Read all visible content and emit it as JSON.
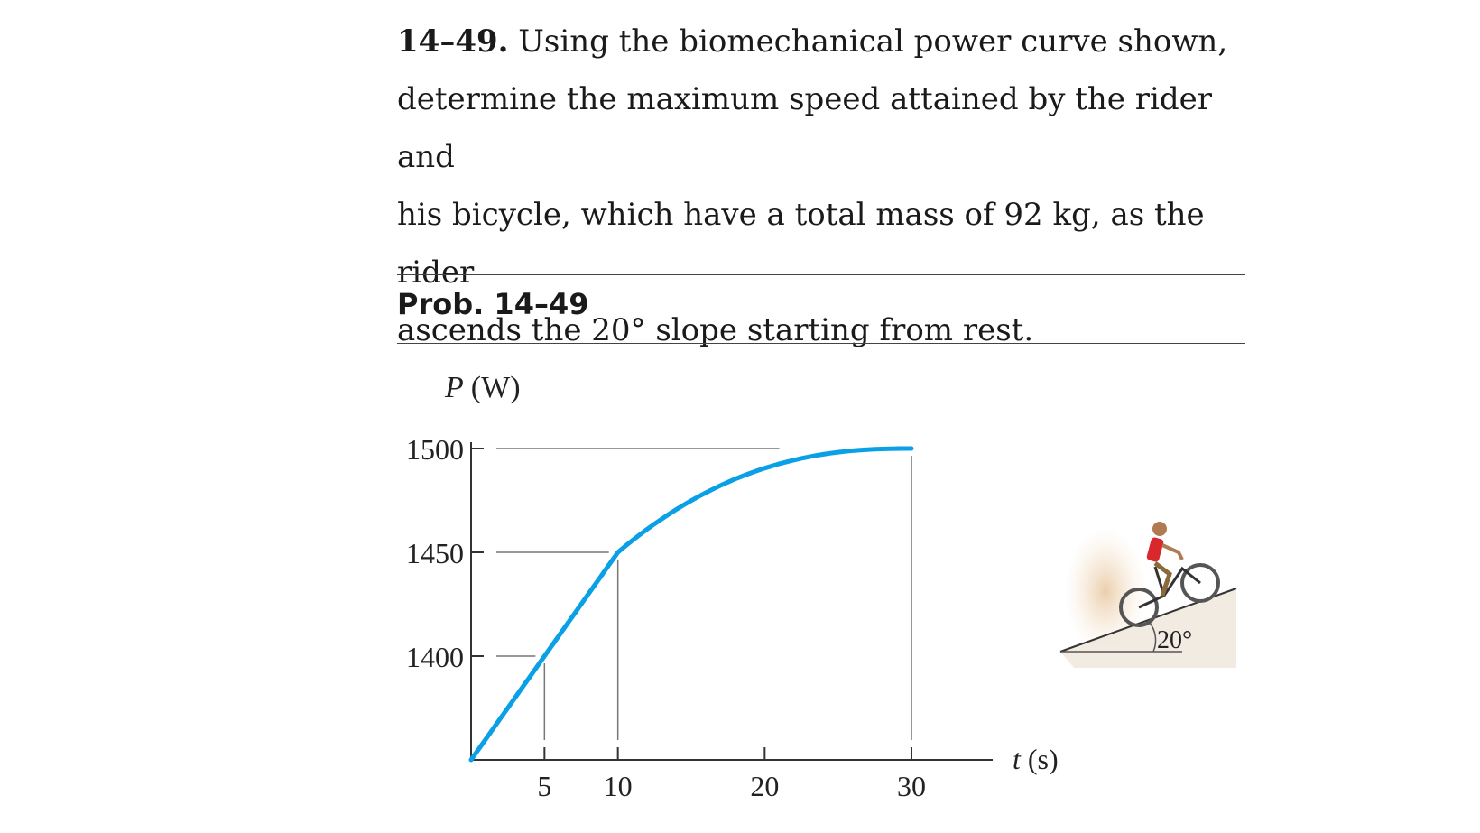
{
  "problem": {
    "number": "14–49.",
    "text_lines": [
      "Using the biomechanical power curve shown,",
      "determine the maximum speed attained by the rider and",
      "his bicycle, which have a total mass of 92 kg, as the rider",
      "ascends the 20° slope starting from rest."
    ]
  },
  "caption": "Prob. 14–49",
  "chart_data": {
    "type": "line",
    "ylabel_var": "P",
    "ylabel_unit": "(W)",
    "xlabel_var": "t",
    "xlabel_unit": "(s)",
    "x_ticks": [
      5,
      10,
      20,
      30
    ],
    "y_ticks": [
      1400,
      1450,
      1500
    ],
    "series": [
      {
        "segments": [
          {
            "kind": "linear",
            "x": [
              0,
              10
            ],
            "y": [
              1350,
              1450
            ]
          },
          {
            "kind": "curve",
            "x": [
              10,
              30
            ],
            "y": [
              1450,
              1500
            ],
            "note_shape": "rises and levels off at 1500"
          }
        ],
        "color": "#0aa0e6"
      }
    ],
    "xlim": [
      0,
      30
    ],
    "ylim": [
      1350,
      1500
    ]
  },
  "inset": {
    "angle_label": "20°"
  }
}
